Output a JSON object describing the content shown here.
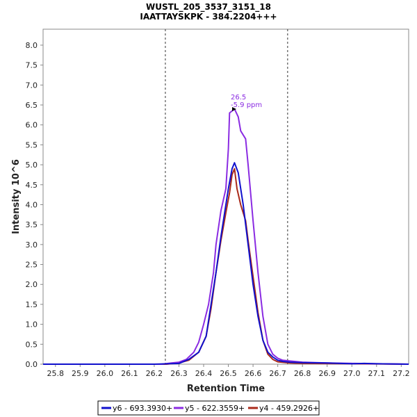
{
  "chart_data": {
    "type": "line",
    "title": "WUSTL_205_3537_3151_18",
    "subtitle": "IAATTAYSKPK - 384.2204+++",
    "xlabel": "Retention Time",
    "ylabel": "Intensity 10^6",
    "xlim": [
      25.75,
      27.23
    ],
    "ylim": [
      0,
      8.4
    ],
    "x_ticks": [
      "25.8",
      "25.9",
      "26.0",
      "26.1",
      "26.2",
      "26.3",
      "26.4",
      "26.5",
      "26.6",
      "26.7",
      "26.8",
      "26.9",
      "27.0",
      "27.1",
      "27.2"
    ],
    "y_ticks": [
      "0.0",
      "0.5",
      "1.0",
      "1.5",
      "2.0",
      "2.5",
      "3.0",
      "3.5",
      "4.0",
      "4.5",
      "5.0",
      "5.5",
      "6.0",
      "6.5",
      "7.0",
      "7.5",
      "8.0"
    ],
    "boundaries": [
      26.245,
      26.74
    ],
    "annotation": {
      "x": 26.525,
      "y": 6.4,
      "line1": "26.5",
      "line2": "-5.9 ppm",
      "color": "#8a2be2"
    },
    "series": [
      {
        "name": "y6 - 693.3930+",
        "color": "#1010cc",
        "points": [
          [
            25.75,
            0.0
          ],
          [
            26.2,
            0.0
          ],
          [
            26.3,
            0.02
          ],
          [
            26.34,
            0.12
          ],
          [
            26.38,
            0.3
          ],
          [
            26.41,
            0.7
          ],
          [
            26.43,
            1.5
          ],
          [
            26.45,
            2.3
          ],
          [
            26.47,
            3.2
          ],
          [
            26.49,
            4.0
          ],
          [
            26.5,
            4.4
          ],
          [
            26.515,
            4.9
          ],
          [
            26.525,
            5.05
          ],
          [
            26.54,
            4.8
          ],
          [
            26.56,
            4.0
          ],
          [
            26.58,
            3.0
          ],
          [
            26.6,
            2.0
          ],
          [
            26.62,
            1.2
          ],
          [
            26.64,
            0.6
          ],
          [
            26.66,
            0.3
          ],
          [
            26.68,
            0.18
          ],
          [
            26.7,
            0.1
          ],
          [
            26.72,
            0.07
          ],
          [
            26.75,
            0.05
          ],
          [
            26.8,
            0.04
          ],
          [
            26.9,
            0.03
          ],
          [
            27.0,
            0.01
          ],
          [
            27.05,
            0.02
          ],
          [
            27.1,
            0.01
          ],
          [
            27.23,
            0.0
          ]
        ]
      },
      {
        "name": "y5 - 622.3559+",
        "color": "#8a2be2",
        "points": [
          [
            25.75,
            0.0
          ],
          [
            26.23,
            0.0
          ],
          [
            26.27,
            0.03
          ],
          [
            26.3,
            0.05
          ],
          [
            26.33,
            0.12
          ],
          [
            26.36,
            0.3
          ],
          [
            26.38,
            0.55
          ],
          [
            26.4,
            1.0
          ],
          [
            26.42,
            1.5
          ],
          [
            26.44,
            2.3
          ],
          [
            26.45,
            3.0
          ],
          [
            26.47,
            3.85
          ],
          [
            26.49,
            4.4
          ],
          [
            26.5,
            5.4
          ],
          [
            26.505,
            6.3
          ],
          [
            26.515,
            6.35
          ],
          [
            26.525,
            6.4
          ],
          [
            26.54,
            6.2
          ],
          [
            26.55,
            5.85
          ],
          [
            26.57,
            5.65
          ],
          [
            26.58,
            5.0
          ],
          [
            26.6,
            3.6
          ],
          [
            26.62,
            2.3
          ],
          [
            26.64,
            1.2
          ],
          [
            26.66,
            0.5
          ],
          [
            26.68,
            0.25
          ],
          [
            26.7,
            0.15
          ],
          [
            26.72,
            0.1
          ],
          [
            26.75,
            0.08
          ],
          [
            26.8,
            0.05
          ],
          [
            26.9,
            0.03
          ],
          [
            27.0,
            0.02
          ],
          [
            27.1,
            0.01
          ],
          [
            27.23,
            0.0
          ]
        ]
      },
      {
        "name": "y4 - 459.2926+",
        "color": "#aa2a1a",
        "points": [
          [
            25.75,
            0.0
          ],
          [
            26.25,
            0.0
          ],
          [
            26.3,
            0.03
          ],
          [
            26.34,
            0.1
          ],
          [
            26.38,
            0.3
          ],
          [
            26.41,
            0.7
          ],
          [
            26.43,
            1.4
          ],
          [
            26.45,
            2.3
          ],
          [
            26.47,
            3.1
          ],
          [
            26.49,
            3.8
          ],
          [
            26.505,
            4.3
          ],
          [
            26.515,
            4.75
          ],
          [
            26.525,
            4.9
          ],
          [
            26.535,
            4.4
          ],
          [
            26.55,
            4.0
          ],
          [
            26.57,
            3.6
          ],
          [
            26.58,
            3.1
          ],
          [
            26.6,
            2.2
          ],
          [
            26.62,
            1.3
          ],
          [
            26.64,
            0.6
          ],
          [
            26.66,
            0.25
          ],
          [
            26.68,
            0.12
          ],
          [
            26.7,
            0.06
          ],
          [
            26.75,
            0.03
          ],
          [
            26.8,
            0.02
          ],
          [
            27.23,
            0.0
          ]
        ]
      }
    ],
    "legend_position": "bottom-center"
  }
}
